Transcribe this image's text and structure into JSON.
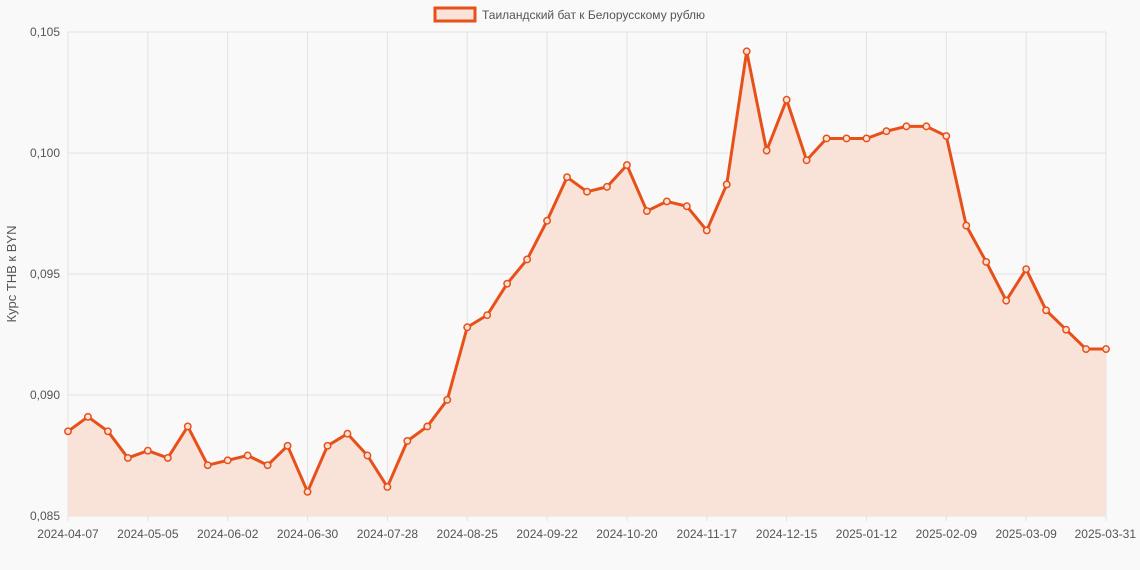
{
  "colors": {
    "line": "#e8501a",
    "fill": "#f9e2d8",
    "grid": "#e2e2e2",
    "background": "#f9f9f9",
    "text": "#555555"
  },
  "chart_data": {
    "type": "area",
    "legend": {
      "label": "Таиландский бат к Белорусскому рублю",
      "placement": "top-center"
    },
    "ylabel": "Курс THB к BYN",
    "xlabel": "",
    "ylim": [
      0.085,
      0.105
    ],
    "yticks": [
      "0,085",
      "0,090",
      "0,095",
      "0,100",
      "0,105"
    ],
    "ytick_values": [
      0.085,
      0.09,
      0.095,
      0.1,
      0.105
    ],
    "xtick_labels": [
      "2024-04-07",
      "2024-05-05",
      "2024-06-02",
      "2024-06-30",
      "2024-07-28",
      "2024-08-25",
      "2024-09-22",
      "2024-10-20",
      "2024-11-17",
      "2024-12-15",
      "2025-01-12",
      "2025-02-09",
      "2025-03-09",
      "2025-03-31"
    ],
    "xtick_index": [
      0,
      4,
      8,
      12,
      16,
      20,
      24,
      28,
      32,
      36,
      40,
      44,
      48,
      52
    ],
    "grid": true,
    "series": [
      {
        "name": "Таиландский бат к Белорусскому рублю",
        "x": [
          "2024-04-07",
          "2024-04-14",
          "2024-04-21",
          "2024-04-28",
          "2024-05-05",
          "2024-05-12",
          "2024-05-19",
          "2024-05-26",
          "2024-06-02",
          "2024-06-09",
          "2024-06-16",
          "2024-06-23",
          "2024-06-30",
          "2024-07-07",
          "2024-07-14",
          "2024-07-21",
          "2024-07-28",
          "2024-08-04",
          "2024-08-11",
          "2024-08-18",
          "2024-08-25",
          "2024-09-01",
          "2024-09-08",
          "2024-09-15",
          "2024-09-22",
          "2024-09-29",
          "2024-10-06",
          "2024-10-13",
          "2024-10-20",
          "2024-10-27",
          "2024-11-03",
          "2024-11-10",
          "2024-11-17",
          "2024-11-24",
          "2024-12-01",
          "2024-12-08",
          "2024-12-15",
          "2024-12-22",
          "2024-12-29",
          "2025-01-05",
          "2025-01-12",
          "2025-01-19",
          "2025-01-26",
          "2025-02-02",
          "2025-02-09",
          "2025-02-16",
          "2025-02-23",
          "2025-03-02",
          "2025-03-09",
          "2025-03-16",
          "2025-03-23",
          "2025-03-30",
          "2025-03-31"
        ],
        "values": [
          0.0885,
          0.0891,
          0.0885,
          0.0874,
          0.0877,
          0.0874,
          0.0887,
          0.0871,
          0.0873,
          0.0875,
          0.0871,
          0.0879,
          0.086,
          0.0879,
          0.0884,
          0.0875,
          0.0862,
          0.0881,
          0.0887,
          0.0898,
          0.0928,
          0.0933,
          0.0946,
          0.0956,
          0.0972,
          0.099,
          0.0984,
          0.0986,
          0.0995,
          0.0976,
          0.098,
          0.0978,
          0.0968,
          0.0987,
          0.1042,
          0.1001,
          0.1022,
          0.0997,
          0.1006,
          0.1006,
          0.1006,
          0.1009,
          0.1011,
          0.1011,
          0.1007,
          0.097,
          0.0955,
          0.0939,
          0.0952,
          0.0935,
          0.0927,
          0.0919,
          0.0919
        ]
      }
    ]
  }
}
